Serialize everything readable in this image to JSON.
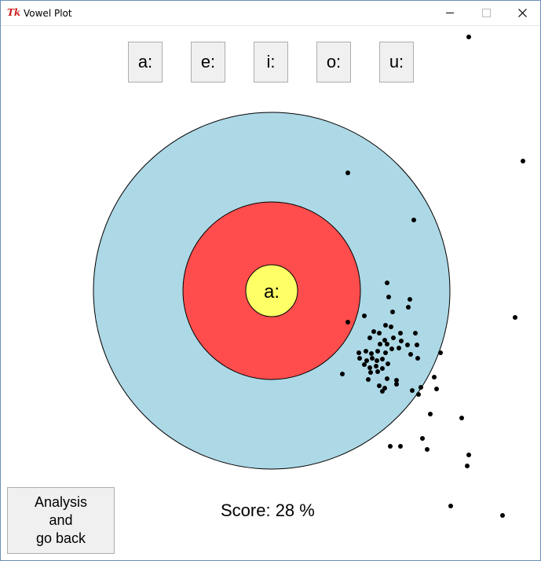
{
  "window": {
    "title": "Vowel Plot",
    "app_icon": "tk-feather-icon",
    "controls": [
      "minimize-icon",
      "maximize-icon",
      "close-icon"
    ]
  },
  "vowel_buttons": [
    "a:",
    "e:",
    "i:",
    "o:",
    "u:"
  ],
  "target": {
    "center_label": "a:",
    "colors": {
      "outer_ring": "#add8e6",
      "middle_ring": "#ff4d4d",
      "inner_ring": "#ffff66",
      "points": "#000000"
    }
  },
  "score": {
    "text": "Score: 28 %",
    "value_percent": 28
  },
  "analysis_button": {
    "label": "Analysis\nand\ngo back"
  }
}
